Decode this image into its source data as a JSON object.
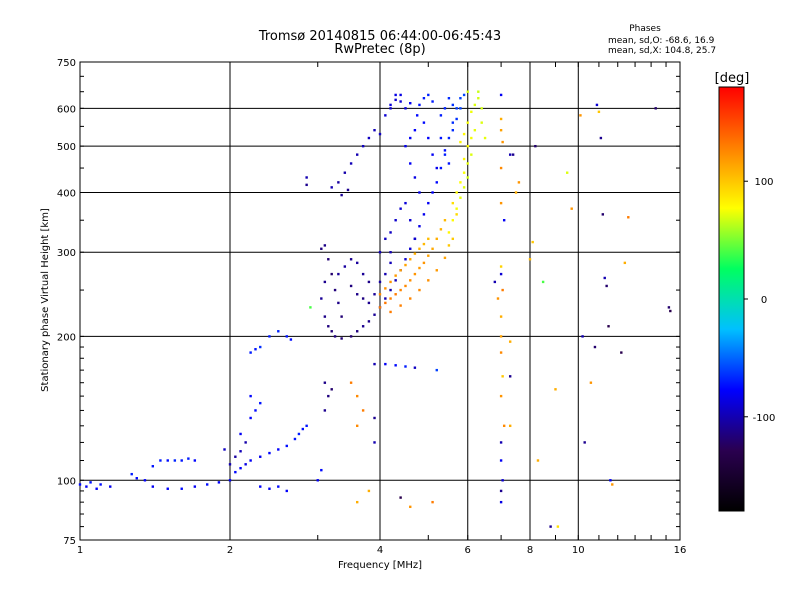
{
  "chart_data": {
    "type": "scatter",
    "title": "Tromsø 20140815 06:44:00-06:45:43",
    "subtitle": "RwPretec (8p)",
    "stats": {
      "heading": "Phases",
      "line1": "mean, sd,O: -68.6, 16.9",
      "line2": "mean, sd,X: 104.8, 25.7"
    },
    "xlabel": "Frequency [MHz]",
    "ylabel": "Stationary phase Virtual Height [km]",
    "x_scale": "log",
    "y_scale": "log",
    "xlim": [
      1,
      16
    ],
    "ylim": [
      75,
      750
    ],
    "xticks": [
      1,
      2,
      4,
      6,
      8,
      10,
      16
    ],
    "yticks": [
      75,
      100,
      200,
      300,
      400,
      500,
      600,
      750
    ],
    "x_gridlines": [
      2,
      4,
      6,
      8,
      10
    ],
    "y_gridlines": [
      100,
      200,
      300,
      400,
      500,
      600
    ],
    "grid": true,
    "colorbar": {
      "label": "[deg]",
      "range": [
        -180,
        180
      ],
      "ticks": [
        100,
        0,
        -100
      ],
      "colors": [
        "#000000",
        "#2a0050",
        "#0000ff",
        "#00c0ff",
        "#00ff60",
        "#ffff00",
        "#ff8000",
        "#ff0000"
      ]
    },
    "points": [
      [
        1.0,
        98,
        -75
      ],
      [
        1.03,
        97,
        -80
      ],
      [
        1.05,
        99,
        -72
      ],
      [
        1.08,
        96,
        -78
      ],
      [
        1.1,
        98,
        -74
      ],
      [
        1.15,
        97,
        -82
      ],
      [
        1.27,
        103,
        -70
      ],
      [
        1.3,
        101,
        -75
      ],
      [
        1.35,
        100,
        -78
      ],
      [
        1.4,
        107,
        -72
      ],
      [
        1.45,
        110,
        -70
      ],
      [
        1.5,
        110,
        -74
      ],
      [
        1.55,
        110,
        -68
      ],
      [
        1.6,
        110,
        -72
      ],
      [
        1.65,
        111,
        -70
      ],
      [
        1.7,
        110,
        -76
      ],
      [
        1.4,
        97,
        -80
      ],
      [
        1.5,
        96,
        -78
      ],
      [
        1.6,
        96,
        -75
      ],
      [
        1.7,
        97,
        -80
      ],
      [
        1.8,
        98,
        -74
      ],
      [
        1.9,
        99,
        -78
      ],
      [
        2.0,
        100,
        -80
      ],
      [
        2.05,
        104,
        -75
      ],
      [
        2.1,
        106,
        -78
      ],
      [
        2.15,
        108,
        -85
      ],
      [
        2.2,
        110,
        -80
      ],
      [
        2.3,
        112,
        -82
      ],
      [
        2.4,
        114,
        -76
      ],
      [
        2.5,
        116,
        -78
      ],
      [
        2.6,
        118,
        -74
      ],
      [
        2.7,
        122,
        -72
      ],
      [
        2.75,
        125,
        -70
      ],
      [
        2.8,
        128,
        -74
      ],
      [
        2.85,
        130,
        -72
      ],
      [
        2.0,
        108,
        -100
      ],
      [
        2.05,
        112,
        -105
      ],
      [
        2.1,
        115,
        -98
      ],
      [
        2.15,
        120,
        -102
      ],
      [
        1.95,
        116,
        -95
      ],
      [
        2.2,
        135,
        -78
      ],
      [
        2.25,
        140,
        -75
      ],
      [
        2.3,
        145,
        -72
      ],
      [
        2.2,
        150,
        -76
      ],
      [
        2.1,
        125,
        -80
      ],
      [
        2.3,
        190,
        -65
      ],
      [
        2.4,
        200,
        -70
      ],
      [
        2.5,
        205,
        -68
      ],
      [
        2.6,
        200,
        -72
      ],
      [
        2.65,
        197,
        -75
      ],
      [
        2.2,
        185,
        -70
      ],
      [
        2.25,
        188,
        -72
      ],
      [
        2.3,
        97,
        -78
      ],
      [
        2.4,
        96,
        -80
      ],
      [
        2.5,
        97,
        -75
      ],
      [
        2.6,
        95,
        -78
      ],
      [
        2.9,
        230,
        40
      ],
      [
        2.85,
        430,
        -100
      ],
      [
        2.85,
        415,
        -110
      ],
      [
        3.0,
        100,
        -80
      ],
      [
        3.05,
        105,
        -75
      ],
      [
        3.1,
        140,
        -110
      ],
      [
        3.15,
        150,
        -115
      ],
      [
        3.2,
        155,
        -120
      ],
      [
        3.1,
        160,
        -112
      ],
      [
        3.05,
        305,
        -115
      ],
      [
        3.1,
        310,
        -112
      ],
      [
        3.15,
        290,
        -118
      ],
      [
        3.2,
        270,
        -120
      ],
      [
        3.25,
        250,
        -116
      ],
      [
        3.3,
        235,
        -112
      ],
      [
        3.35,
        220,
        -118
      ],
      [
        3.1,
        260,
        -110
      ],
      [
        3.05,
        240,
        -108
      ],
      [
        3.1,
        220,
        -112
      ],
      [
        3.15,
        210,
        -115
      ],
      [
        3.2,
        205,
        -118
      ],
      [
        3.25,
        200,
        -116
      ],
      [
        3.35,
        198,
        -118
      ],
      [
        3.5,
        200,
        -120
      ],
      [
        3.6,
        205,
        -115
      ],
      [
        3.7,
        210,
        -110
      ],
      [
        3.8,
        215,
        -112
      ],
      [
        3.9,
        222,
        -108
      ],
      [
        4.0,
        230,
        -105
      ],
      [
        4.1,
        240,
        -100
      ],
      [
        4.2,
        250,
        -102
      ],
      [
        4.3,
        262,
        -98
      ],
      [
        4.4,
        275,
        -95
      ],
      [
        4.5,
        290,
        -92
      ],
      [
        4.6,
        305,
        -90
      ],
      [
        4.7,
        320,
        -88
      ],
      [
        4.8,
        340,
        -85
      ],
      [
        4.9,
        360,
        -82
      ],
      [
        5.0,
        380,
        -80
      ],
      [
        5.1,
        400,
        -78
      ],
      [
        5.2,
        420,
        -75
      ],
      [
        5.3,
        450,
        -72
      ],
      [
        5.4,
        480,
        -70
      ],
      [
        5.5,
        520,
        -68
      ],
      [
        5.6,
        560,
        -65
      ],
      [
        5.7,
        600,
        -62
      ],
      [
        5.8,
        630,
        -60
      ],
      [
        3.3,
        270,
        -108
      ],
      [
        3.4,
        280,
        -105
      ],
      [
        3.5,
        290,
        -110
      ],
      [
        3.6,
        285,
        -106
      ],
      [
        3.7,
        270,
        -108
      ],
      [
        3.8,
        260,
        -112
      ],
      [
        3.5,
        255,
        -115
      ],
      [
        3.6,
        245,
        -112
      ],
      [
        3.7,
        240,
        -114
      ],
      [
        3.8,
        235,
        -110
      ],
      [
        3.9,
        245,
        -108
      ],
      [
        4.0,
        260,
        -104
      ],
      [
        4.1,
        270,
        -100
      ],
      [
        4.2,
        285,
        -98
      ],
      [
        3.2,
        410,
        -100
      ],
      [
        3.3,
        420,
        -105
      ],
      [
        3.4,
        440,
        -102
      ],
      [
        3.5,
        460,
        -98
      ],
      [
        3.6,
        480,
        -100
      ],
      [
        3.7,
        500,
        -96
      ],
      [
        3.8,
        520,
        -95
      ],
      [
        3.9,
        540,
        -98
      ],
      [
        3.35,
        395,
        -108
      ],
      [
        3.45,
        405,
        -110
      ],
      [
        4.0,
        530,
        -95
      ],
      [
        4.1,
        580,
        -90
      ],
      [
        4.2,
        610,
        -88
      ],
      [
        4.3,
        640,
        -85
      ],
      [
        4.4,
        620,
        -90
      ],
      [
        4.5,
        600,
        -88
      ],
      [
        4.6,
        615,
        -80
      ],
      [
        4.2,
        600,
        -92
      ],
      [
        4.3,
        625,
        -90
      ],
      [
        4.4,
        640,
        -85
      ],
      [
        4.5,
        500,
        -82
      ],
      [
        4.6,
        520,
        -80
      ],
      [
        4.7,
        540,
        -78
      ],
      [
        4.75,
        580,
        -75
      ],
      [
        4.8,
        610,
        -72
      ],
      [
        4.9,
        630,
        -70
      ],
      [
        5.0,
        640,
        -68
      ],
      [
        5.1,
        620,
        -70
      ],
      [
        4.9,
        560,
        -75
      ],
      [
        5.0,
        520,
        -78
      ],
      [
        5.1,
        480,
        -80
      ],
      [
        5.2,
        450,
        -82
      ],
      [
        4.6,
        460,
        -80
      ],
      [
        4.7,
        430,
        -85
      ],
      [
        4.8,
        400,
        -82
      ],
      [
        4.5,
        380,
        -88
      ],
      [
        4.6,
        350,
        -90
      ],
      [
        4.7,
        320,
        -92
      ],
      [
        4.2,
        330,
        -95
      ],
      [
        4.3,
        350,
        -92
      ],
      [
        4.4,
        370,
        -90
      ],
      [
        4.0,
        300,
        -98
      ],
      [
        4.1,
        320,
        -95
      ],
      [
        4.2,
        300,
        -100
      ],
      [
        5.3,
        580,
        -70
      ],
      [
        5.4,
        600,
        -68
      ],
      [
        5.5,
        630,
        -66
      ],
      [
        5.6,
        610,
        -64
      ],
      [
        5.3,
        520,
        -72
      ],
      [
        5.4,
        490,
        -74
      ],
      [
        5.5,
        460,
        -72
      ],
      [
        5.6,
        540,
        -66
      ],
      [
        5.7,
        570,
        -64
      ],
      [
        5.8,
        600,
        -60
      ],
      [
        5.9,
        640,
        -58
      ],
      [
        4.0,
        230,
        130
      ],
      [
        4.1,
        235,
        132
      ],
      [
        4.2,
        240,
        128
      ],
      [
        4.3,
        245,
        130
      ],
      [
        4.4,
        250,
        126
      ],
      [
        4.5,
        255,
        125
      ],
      [
        4.6,
        262,
        122
      ],
      [
        4.7,
        270,
        120
      ],
      [
        4.8,
        278,
        118
      ],
      [
        4.9,
        285,
        120
      ],
      [
        5.0,
        295,
        115
      ],
      [
        5.1,
        305,
        112
      ],
      [
        5.2,
        320,
        110
      ],
      [
        5.3,
        335,
        108
      ],
      [
        5.4,
        350,
        105
      ],
      [
        4.0,
        245,
        125
      ],
      [
        4.1,
        252,
        122
      ],
      [
        4.2,
        260,
        120
      ],
      [
        4.3,
        268,
        118
      ],
      [
        4.4,
        275,
        116
      ],
      [
        4.5,
        282,
        114
      ],
      [
        4.6,
        290,
        112
      ],
      [
        4.7,
        298,
        110
      ],
      [
        4.8,
        305,
        108
      ],
      [
        4.9,
        312,
        106
      ],
      [
        5.0,
        320,
        104
      ],
      [
        4.2,
        225,
        130
      ],
      [
        4.4,
        232,
        128
      ],
      [
        4.6,
        240,
        126
      ],
      [
        4.8,
        250,
        124
      ],
      [
        5.0,
        262,
        122
      ],
      [
        5.2,
        275,
        118
      ],
      [
        5.4,
        292,
        115
      ],
      [
        5.5,
        330,
        80
      ],
      [
        5.6,
        350,
        78
      ],
      [
        5.7,
        370,
        75
      ],
      [
        5.8,
        390,
        72
      ],
      [
        5.9,
        410,
        70
      ],
      [
        6.0,
        430,
        68
      ],
      [
        5.7,
        400,
        80
      ],
      [
        5.8,
        420,
        78
      ],
      [
        5.9,
        440,
        76
      ],
      [
        6.0,
        460,
        72
      ],
      [
        6.1,
        480,
        70
      ],
      [
        5.9,
        470,
        80
      ],
      [
        6.0,
        500,
        78
      ],
      [
        6.1,
        520,
        75
      ],
      [
        6.2,
        540,
        72
      ],
      [
        5.8,
        510,
        82
      ],
      [
        5.9,
        530,
        80
      ],
      [
        6.0,
        560,
        76
      ],
      [
        6.1,
        590,
        74
      ],
      [
        6.2,
        610,
        70
      ],
      [
        6.3,
        630,
        68
      ],
      [
        5.6,
        380,
        90
      ],
      [
        5.7,
        360,
        92
      ],
      [
        5.5,
        310,
        100
      ],
      [
        5.6,
        320,
        98
      ],
      [
        6.4,
        600,
        68
      ],
      [
        6.4,
        560,
        70
      ],
      [
        6.5,
        520,
        72
      ],
      [
        6.0,
        650,
        70
      ],
      [
        6.3,
        650,
        66
      ],
      [
        7.0,
        640,
        -80
      ],
      [
        7.0,
        570,
        110
      ],
      [
        7.0,
        540,
        115
      ],
      [
        7.05,
        510,
        120
      ],
      [
        7.0,
        450,
        125
      ],
      [
        7.0,
        380,
        120
      ],
      [
        7.0,
        280,
        95
      ],
      [
        7.05,
        250,
        130
      ],
      [
        7.0,
        220,
        110
      ],
      [
        7.0,
        200,
        115
      ],
      [
        7.0,
        185,
        125
      ],
      [
        7.05,
        165,
        100
      ],
      [
        7.0,
        150,
        120
      ],
      [
        7.1,
        130,
        125
      ],
      [
        7.0,
        120,
        -100
      ],
      [
        7.0,
        110,
        -80
      ],
      [
        7.05,
        100,
        -90
      ],
      [
        7.0,
        95,
        -110
      ],
      [
        7.0,
        90,
        -85
      ],
      [
        6.8,
        260,
        -100
      ],
      [
        6.9,
        240,
        120
      ],
      [
        7.0,
        270,
        -90
      ],
      [
        7.1,
        350,
        -80
      ],
      [
        7.3,
        130,
        110
      ],
      [
        7.3,
        165,
        -110
      ],
      [
        7.3,
        195,
        110
      ],
      [
        7.3,
        480,
        -100
      ],
      [
        7.4,
        480,
        -110
      ],
      [
        7.6,
        420,
        120
      ],
      [
        7.5,
        400,
        110
      ],
      [
        8.0,
        290,
        105
      ],
      [
        8.1,
        315,
        100
      ],
      [
        8.2,
        500,
        -120
      ],
      [
        8.3,
        110,
        110
      ],
      [
        8.5,
        260,
        40
      ],
      [
        8.8,
        80,
        -110
      ],
      [
        9.0,
        155,
        110
      ],
      [
        9.1,
        80,
        90
      ],
      [
        9.5,
        440,
        70
      ],
      [
        9.7,
        370,
        120
      ],
      [
        10.1,
        580,
        120
      ],
      [
        10.2,
        200,
        -100
      ],
      [
        10.3,
        120,
        -110
      ],
      [
        10.6,
        160,
        120
      ],
      [
        10.8,
        190,
        -120
      ],
      [
        10.9,
        610,
        -90
      ],
      [
        11.0,
        590,
        100
      ],
      [
        11.1,
        520,
        -110
      ],
      [
        11.2,
        360,
        -120
      ],
      [
        11.3,
        265,
        -100
      ],
      [
        11.4,
        255,
        -120
      ],
      [
        11.5,
        210,
        -130
      ],
      [
        11.6,
        100,
        -80
      ],
      [
        11.7,
        98,
        120
      ],
      [
        12.2,
        185,
        -130
      ],
      [
        12.4,
        285,
        110
      ],
      [
        12.6,
        355,
        130
      ],
      [
        14.3,
        600,
        -120
      ],
      [
        15.2,
        230,
        -120
      ],
      [
        15.3,
        226,
        -130
      ],
      [
        3.9,
        175,
        -100
      ],
      [
        4.1,
        175,
        -80
      ],
      [
        4.3,
        174,
        -75
      ],
      [
        4.5,
        173,
        -70
      ],
      [
        4.7,
        172,
        -95
      ],
      [
        5.2,
        170,
        -60
      ],
      [
        3.5,
        160,
        130
      ],
      [
        3.6,
        150,
        125
      ],
      [
        3.7,
        140,
        130
      ],
      [
        3.9,
        135,
        -110
      ],
      [
        3.6,
        90,
        110
      ],
      [
        3.8,
        95,
        110
      ],
      [
        4.4,
        92,
        -130
      ],
      [
        4.6,
        88,
        120
      ],
      [
        5.1,
        90,
        130
      ],
      [
        3.6,
        130,
        125
      ],
      [
        3.9,
        120,
        -100
      ]
    ]
  }
}
